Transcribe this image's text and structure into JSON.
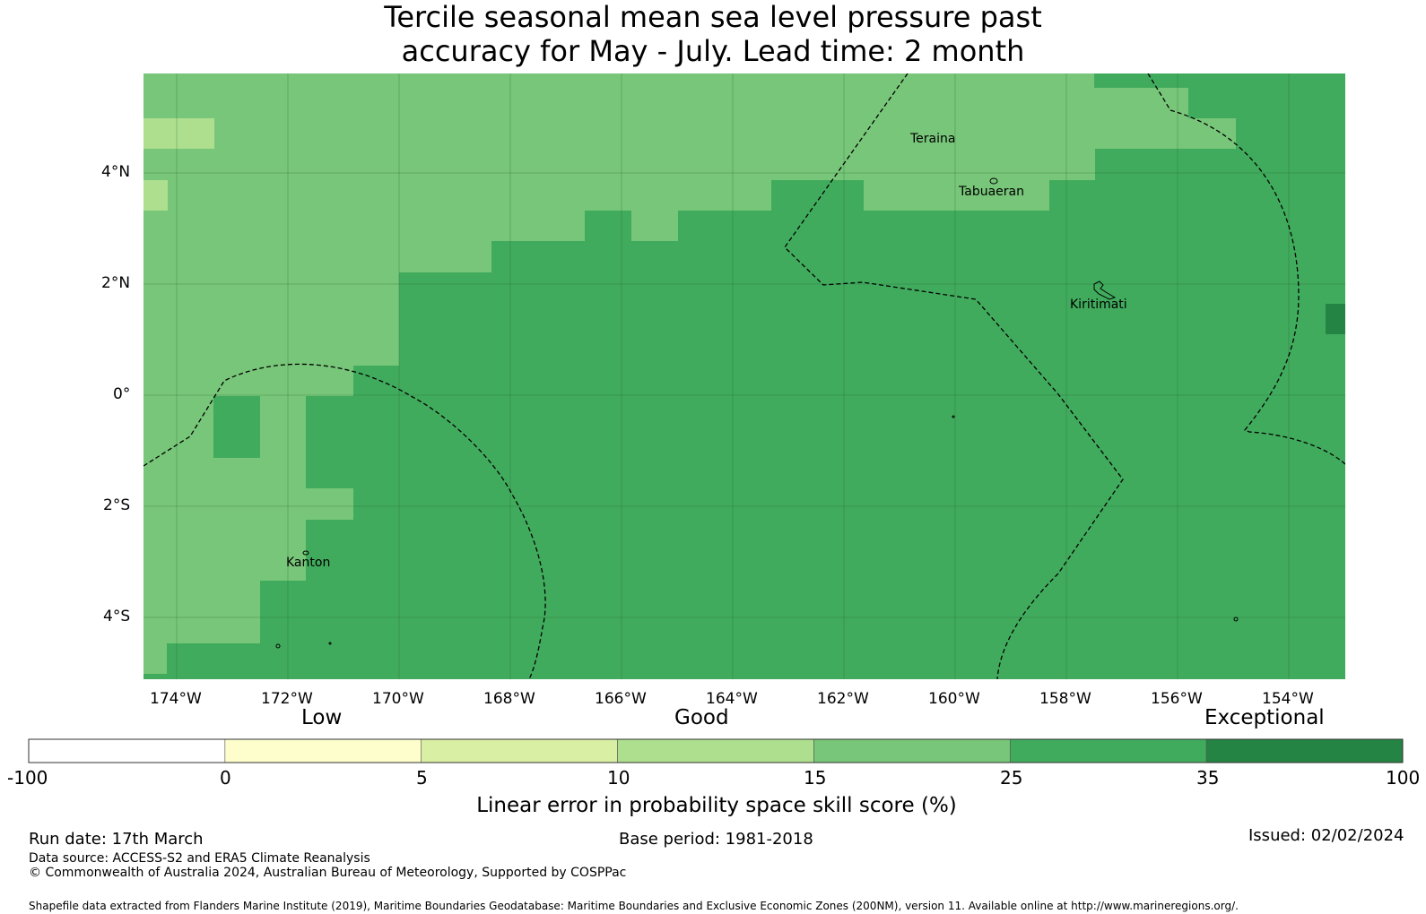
{
  "title": {
    "line1": "Tercile seasonal mean sea level pressure past",
    "line2": "accuracy for May - July. Lead time: 2 month"
  },
  "map": {
    "lon_ticks": [
      "174°W",
      "172°W",
      "170°W",
      "168°W",
      "166°W",
      "164°W",
      "162°W",
      "160°W",
      "158°W",
      "156°W",
      "154°W"
    ],
    "lat_ticks": [
      "4°N",
      "2°N",
      "0°",
      "2°S",
      "4°S"
    ],
    "places": [
      "Teraina",
      "Tabuaeran",
      "Kiritimati",
      "Kanton"
    ]
  },
  "colorbar": {
    "categories": [
      "Low",
      "Good",
      "Exceptional"
    ],
    "ticks": [
      "-100",
      "0",
      "5",
      "10",
      "15",
      "25",
      "35",
      "100"
    ],
    "colors": [
      "#ffffff",
      "#fefecd",
      "#d9efa3",
      "#addf8e",
      "#78c679",
      "#41ab5d",
      "#238443"
    ],
    "label": "Linear error in probability space skill score (%)"
  },
  "footer": {
    "run_date": "Run date: 17th March",
    "base_period": "Base period: 1981-2018",
    "issued": "Issued: 02/02/2024",
    "data_source": "Data source: ACCESS-S2 and ERA5 Climate Reanalysis",
    "copyright": "© Commonwealth of Australia 2024, Australian Bureau of Meteorology, Supported by COSPPac",
    "shapefile": "Shapefile data extracted from Flanders Marine Institute (2019), Maritime Boundaries Geodatabase: Maritime Boundaries and Exclusive Economic Zones (200NM), version 11. Available online at http://www.marineregions.org/."
  }
}
